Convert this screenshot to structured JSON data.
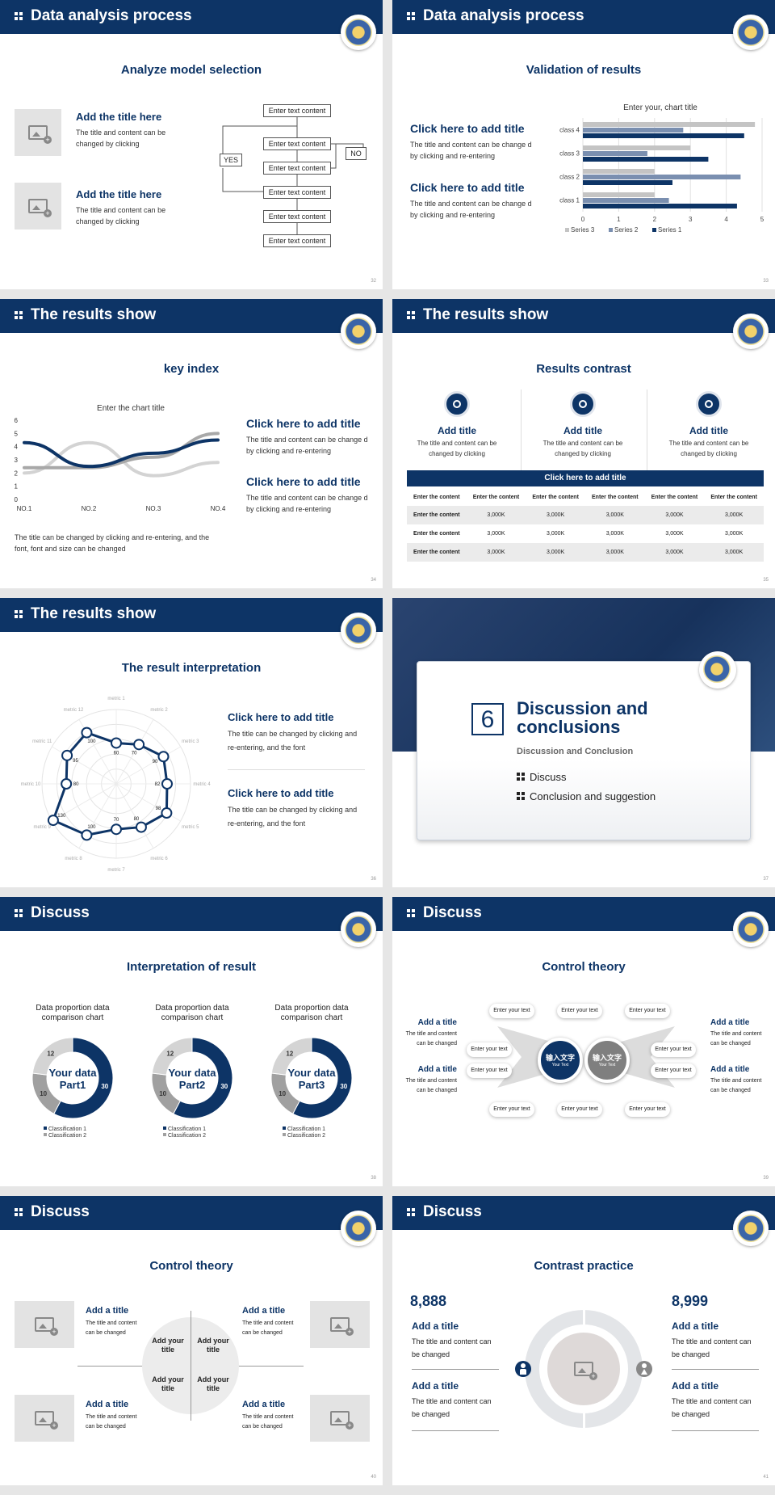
{
  "headers": {
    "s32": "Data analysis process",
    "s33": "Data analysis process",
    "s34": "The results show",
    "s35": "The results show",
    "s36": "The results show",
    "s38": "Discuss",
    "s39": "Discuss",
    "s40": "Discuss",
    "s41": "Discuss"
  },
  "page_numbers": {
    "s32": "32",
    "s33": "33",
    "s34": "34",
    "s35": "35",
    "s36": "36",
    "s37": "37",
    "s38": "38",
    "s39": "39",
    "s40": "40",
    "s41": "41"
  },
  "s32": {
    "subtitle": "Analyze model selection",
    "items": [
      {
        "title": "Add the title here",
        "body": "The title and content can be changed by clicking"
      },
      {
        "title": "Add the title here",
        "body": "The title and content can be changed by clicking"
      }
    ],
    "flow": [
      "Enter text content",
      "Enter text content",
      "Enter text content",
      "Enter text content",
      "Enter text content",
      "Enter text content"
    ],
    "yes": "YES",
    "no": "NO"
  },
  "s33": {
    "subtitle": "Validation of results",
    "items": [
      {
        "title": "Click here to add title",
        "body": "The title and content can be change d by clicking and re-entering"
      },
      {
        "title": "Click here to add title",
        "body": "The title and content can be change d by clicking and re-entering"
      }
    ],
    "chart_data": {
      "type": "bar",
      "orientation": "horizontal",
      "title": "Enter your, chart title",
      "categories": [
        "class 1",
        "class 2",
        "class 3",
        "class 4"
      ],
      "series": [
        {
          "name": "Series 3",
          "color": "#c4c4c4",
          "values": [
            2,
            2,
            3,
            4.8
          ]
        },
        {
          "name": "Series 2",
          "color": "#7a8fb0",
          "values": [
            2.4,
            4.4,
            1.8,
            2.8
          ]
        },
        {
          "name": "Series 1",
          "color": "#0d3466",
          "values": [
            4.3,
            2.5,
            3.5,
            4.5
          ]
        }
      ],
      "xlim": [
        0,
        5
      ],
      "xticks": [
        "0",
        "1",
        "2",
        "3",
        "4",
        "5"
      ],
      "legend": "bottom",
      "grid": true
    }
  },
  "s34": {
    "subtitle": "key index",
    "items": [
      {
        "title": "Click here to add title",
        "body": "The title and content can be change d by clicking and re-entering"
      },
      {
        "title": "Click here to add title",
        "body": "The title and content can be change d by clicking and re-entering"
      }
    ],
    "note": "The title can be changed by clicking and re-entering, and the font, font and size can be changed",
    "chart_data": {
      "type": "line",
      "title": "Enter the chart title",
      "categories": [
        "NO.1",
        "NO.2",
        "NO.3",
        "NO.4"
      ],
      "yticks": [
        "0",
        "1",
        "2",
        "3",
        "4",
        "5",
        "6"
      ],
      "ylim": [
        0,
        6
      ],
      "series": [
        {
          "color": "#0d3466",
          "values": [
            4.3,
            2.5,
            3.5,
            4.5
          ]
        },
        {
          "color": "#a8a8a8",
          "values": [
            2.4,
            2.4,
            3.2,
            5
          ]
        },
        {
          "color": "#d3d3d3",
          "values": [
            2,
            4.3,
            1.8,
            2.8
          ]
        }
      ]
    }
  },
  "s35": {
    "subtitle": "Results contrast",
    "cols": [
      {
        "title": "Add title",
        "body": "The title and content can be changed by clicking"
      },
      {
        "title": "Add title",
        "body": "The title and content can be changed by clicking"
      },
      {
        "title": "Add title",
        "body": "The title and content can be changed by clicking"
      }
    ],
    "table": {
      "caption": "Click here to add title",
      "header": [
        "Enter the content",
        "Enter the content",
        "Enter the content",
        "Enter the content",
        "Enter the content",
        "Enter the content"
      ],
      "rows": [
        [
          "Enter the content",
          "3,000K",
          "3,000K",
          "3,000K",
          "3,000K",
          "3,000K"
        ],
        [
          "Enter the content",
          "3,000K",
          "3,000K",
          "3,000K",
          "3,000K",
          "3,000K"
        ],
        [
          "Enter the content",
          "3,000K",
          "3,000K",
          "3,000K",
          "3,000K",
          "3,000K"
        ]
      ]
    }
  },
  "s36": {
    "subtitle": "The result interpretation",
    "items": [
      {
        "title": "Click here to add  title",
        "body": "The title can be changed by clicking and re-entering, and the font"
      },
      {
        "title": "Click here to add  title",
        "body": "The title can be changed by clicking and re-entering, and the font"
      }
    ],
    "radar": {
      "metrics": [
        "metric 1",
        "metric 2",
        "metric 3",
        "metric 4",
        "metric 5",
        "metric 6",
        "metric 7",
        "metric 8",
        "metric 9",
        "metric 10",
        "metric 11",
        "metric 12"
      ],
      "values": [
        60,
        70,
        90,
        82,
        98,
        80,
        70,
        100,
        130,
        80,
        95,
        100
      ],
      "labels": [
        "60",
        "70",
        "90",
        "82",
        "98",
        "80",
        "70",
        "100",
        "130",
        "80",
        "95",
        "100"
      ],
      "max": 130
    }
  },
  "s37": {
    "number": "6",
    "title": "Discussion and conclusions",
    "subtitle": "Discussion and Conclusion",
    "bullets": [
      "Discuss",
      "Conclusion and suggestion"
    ]
  },
  "s38": {
    "subtitle": "Interpretation of result",
    "charts": [
      {
        "title": "Data proportion data comparison chart",
        "center": "Your data Part1",
        "values": [
          30,
          10,
          12
        ],
        "labels": [
          "30",
          "10",
          "12"
        ],
        "legend": [
          "Classification 1",
          "Classification 2"
        ]
      },
      {
        "title": "Data proportion data comparison chart",
        "center": "Your data Part2",
        "values": [
          30,
          10,
          12
        ],
        "labels": [
          "30",
          "10",
          "12"
        ],
        "legend": [
          "Classification 1",
          "Classification 2"
        ]
      },
      {
        "title": "Data proportion data comparison chart",
        "center": "Your data Part3",
        "values": [
          30,
          10,
          12
        ],
        "labels": [
          "30",
          "10",
          "12"
        ],
        "legend": [
          "Classification 1",
          "Classification 2"
        ]
      }
    ],
    "colors": [
      "#0d3466",
      "#a0a0a0",
      "#d4d4d4"
    ]
  },
  "s39": {
    "subtitle": "Control theory",
    "left": [
      {
        "title": "Add a title",
        "body": "The title and content can be changed"
      },
      {
        "title": "Add a title",
        "body": "The title and content can be changed"
      }
    ],
    "right": [
      {
        "title": "Add a title",
        "body": "The title and content can be changed"
      },
      {
        "title": "Add a title",
        "body": "The title and content can be changed"
      }
    ],
    "pills": [
      "Enter your text",
      "Enter your text",
      "Enter your text",
      "Enter your text",
      "Enter your text",
      "Enter your text",
      "Enter your text",
      "Enter your text",
      "Enter your text",
      "Enter your text",
      "Enter your text"
    ],
    "c1": "输入文字",
    "c1s": "Your Text",
    "c2": "输入文字",
    "c2s": "Your Text"
  },
  "s40": {
    "subtitle": "Control theory",
    "items": [
      {
        "title": "Add a title",
        "body": "The title and content can be changed"
      },
      {
        "title": "Add a title",
        "body": "The title and content can be changed"
      },
      {
        "title": "Add a title",
        "body": "The title and content can be changed"
      },
      {
        "title": "Add a title",
        "body": "The title and content can be changed"
      }
    ],
    "quads": [
      "Add your title",
      "Add your title",
      "Add your title",
      "Add your title"
    ]
  },
  "s41": {
    "subtitle": "Contrast practice",
    "left": {
      "number": "8,888",
      "items": [
        {
          "title": "Add a title",
          "body": "The title and content can be changed"
        },
        {
          "title": "Add a title",
          "body": "The title and content can be changed"
        }
      ]
    },
    "right": {
      "number": "8,999",
      "items": [
        {
          "title": "Add a title",
          "body": "The title and content can be changed"
        },
        {
          "title": "Add a title",
          "body": "The title and content can be changed"
        }
      ]
    }
  }
}
